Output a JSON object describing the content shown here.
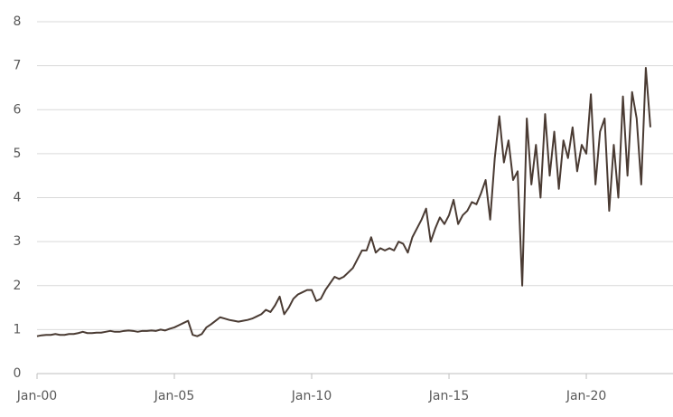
{
  "chart_data": {
    "type": "line",
    "categories": [
      "Jan-00",
      null,
      null,
      null,
      null,
      null,
      null,
      null,
      null,
      null,
      null,
      null,
      null,
      null,
      null,
      null,
      null,
      null,
      null,
      null,
      null,
      null,
      null,
      null,
      null,
      null,
      null,
      null,
      null,
      null,
      "Jan-05",
      null,
      null,
      null,
      null,
      null,
      null,
      null,
      null,
      null,
      null,
      null,
      null,
      null,
      null,
      null,
      null,
      null,
      null,
      null,
      null,
      null,
      null,
      null,
      null,
      null,
      null,
      null,
      null,
      null,
      "Jan-10",
      null,
      null,
      null,
      null,
      null,
      null,
      null,
      null,
      null,
      null,
      null,
      null,
      null,
      null,
      null,
      null,
      null,
      null,
      null,
      null,
      null,
      null,
      null,
      null,
      null,
      null,
      null,
      null,
      null,
      "Jan-15",
      null,
      null,
      null,
      null,
      null,
      null,
      null,
      null,
      null,
      null,
      null,
      null,
      null,
      null,
      null,
      null,
      null,
      null,
      null,
      null,
      null,
      null,
      null,
      null,
      null,
      null,
      null,
      null,
      null,
      "Jan-20",
      null,
      null,
      null,
      null,
      null,
      null,
      null,
      null,
      null,
      null,
      null,
      null,
      null,
      null
    ],
    "values": [
      0.85,
      0.87,
      0.88,
      0.88,
      0.9,
      0.88,
      0.88,
      0.9,
      0.9,
      0.92,
      0.95,
      0.92,
      0.92,
      0.93,
      0.93,
      0.95,
      0.97,
      0.95,
      0.95,
      0.97,
      0.98,
      0.97,
      0.95,
      0.97,
      0.97,
      0.98,
      0.97,
      1.0,
      0.98,
      1.02,
      1.05,
      1.1,
      1.15,
      1.2,
      0.88,
      0.85,
      0.9,
      1.05,
      1.12,
      1.2,
      1.28,
      1.25,
      1.22,
      1.2,
      1.18,
      1.2,
      1.22,
      1.25,
      1.3,
      1.35,
      1.45,
      1.4,
      1.55,
      1.75,
      1.35,
      1.5,
      1.7,
      1.8,
      1.85,
      1.9,
      1.9,
      1.65,
      1.7,
      1.9,
      2.05,
      2.2,
      2.15,
      2.2,
      2.3,
      2.4,
      2.6,
      2.8,
      2.8,
      3.1,
      2.75,
      2.85,
      2.8,
      2.85,
      2.8,
      3.0,
      2.95,
      2.75,
      3.1,
      3.3,
      3.5,
      3.75,
      3.0,
      3.3,
      3.55,
      3.4,
      3.6,
      3.95,
      3.4,
      3.6,
      3.7,
      3.9,
      3.85,
      4.1,
      4.4,
      3.5,
      4.9,
      5.85,
      4.8,
      5.3,
      4.4,
      4.6,
      2.0,
      5.8,
      4.3,
      5.2,
      4.0,
      5.9,
      4.5,
      5.5,
      4.2,
      5.3,
      4.9,
      5.6,
      4.6,
      5.2,
      5.0,
      6.35,
      4.3,
      5.5,
      5.8,
      3.7,
      5.2,
      4.0,
      6.3,
      4.5,
      6.4,
      5.8,
      4.3,
      6.95,
      5.6
    ],
    "color": "#4a3b33",
    "ylim": [
      0,
      8
    ],
    "yticks": [
      0,
      1,
      2,
      3,
      4,
      5,
      6,
      7,
      8
    ],
    "grid": true
  }
}
